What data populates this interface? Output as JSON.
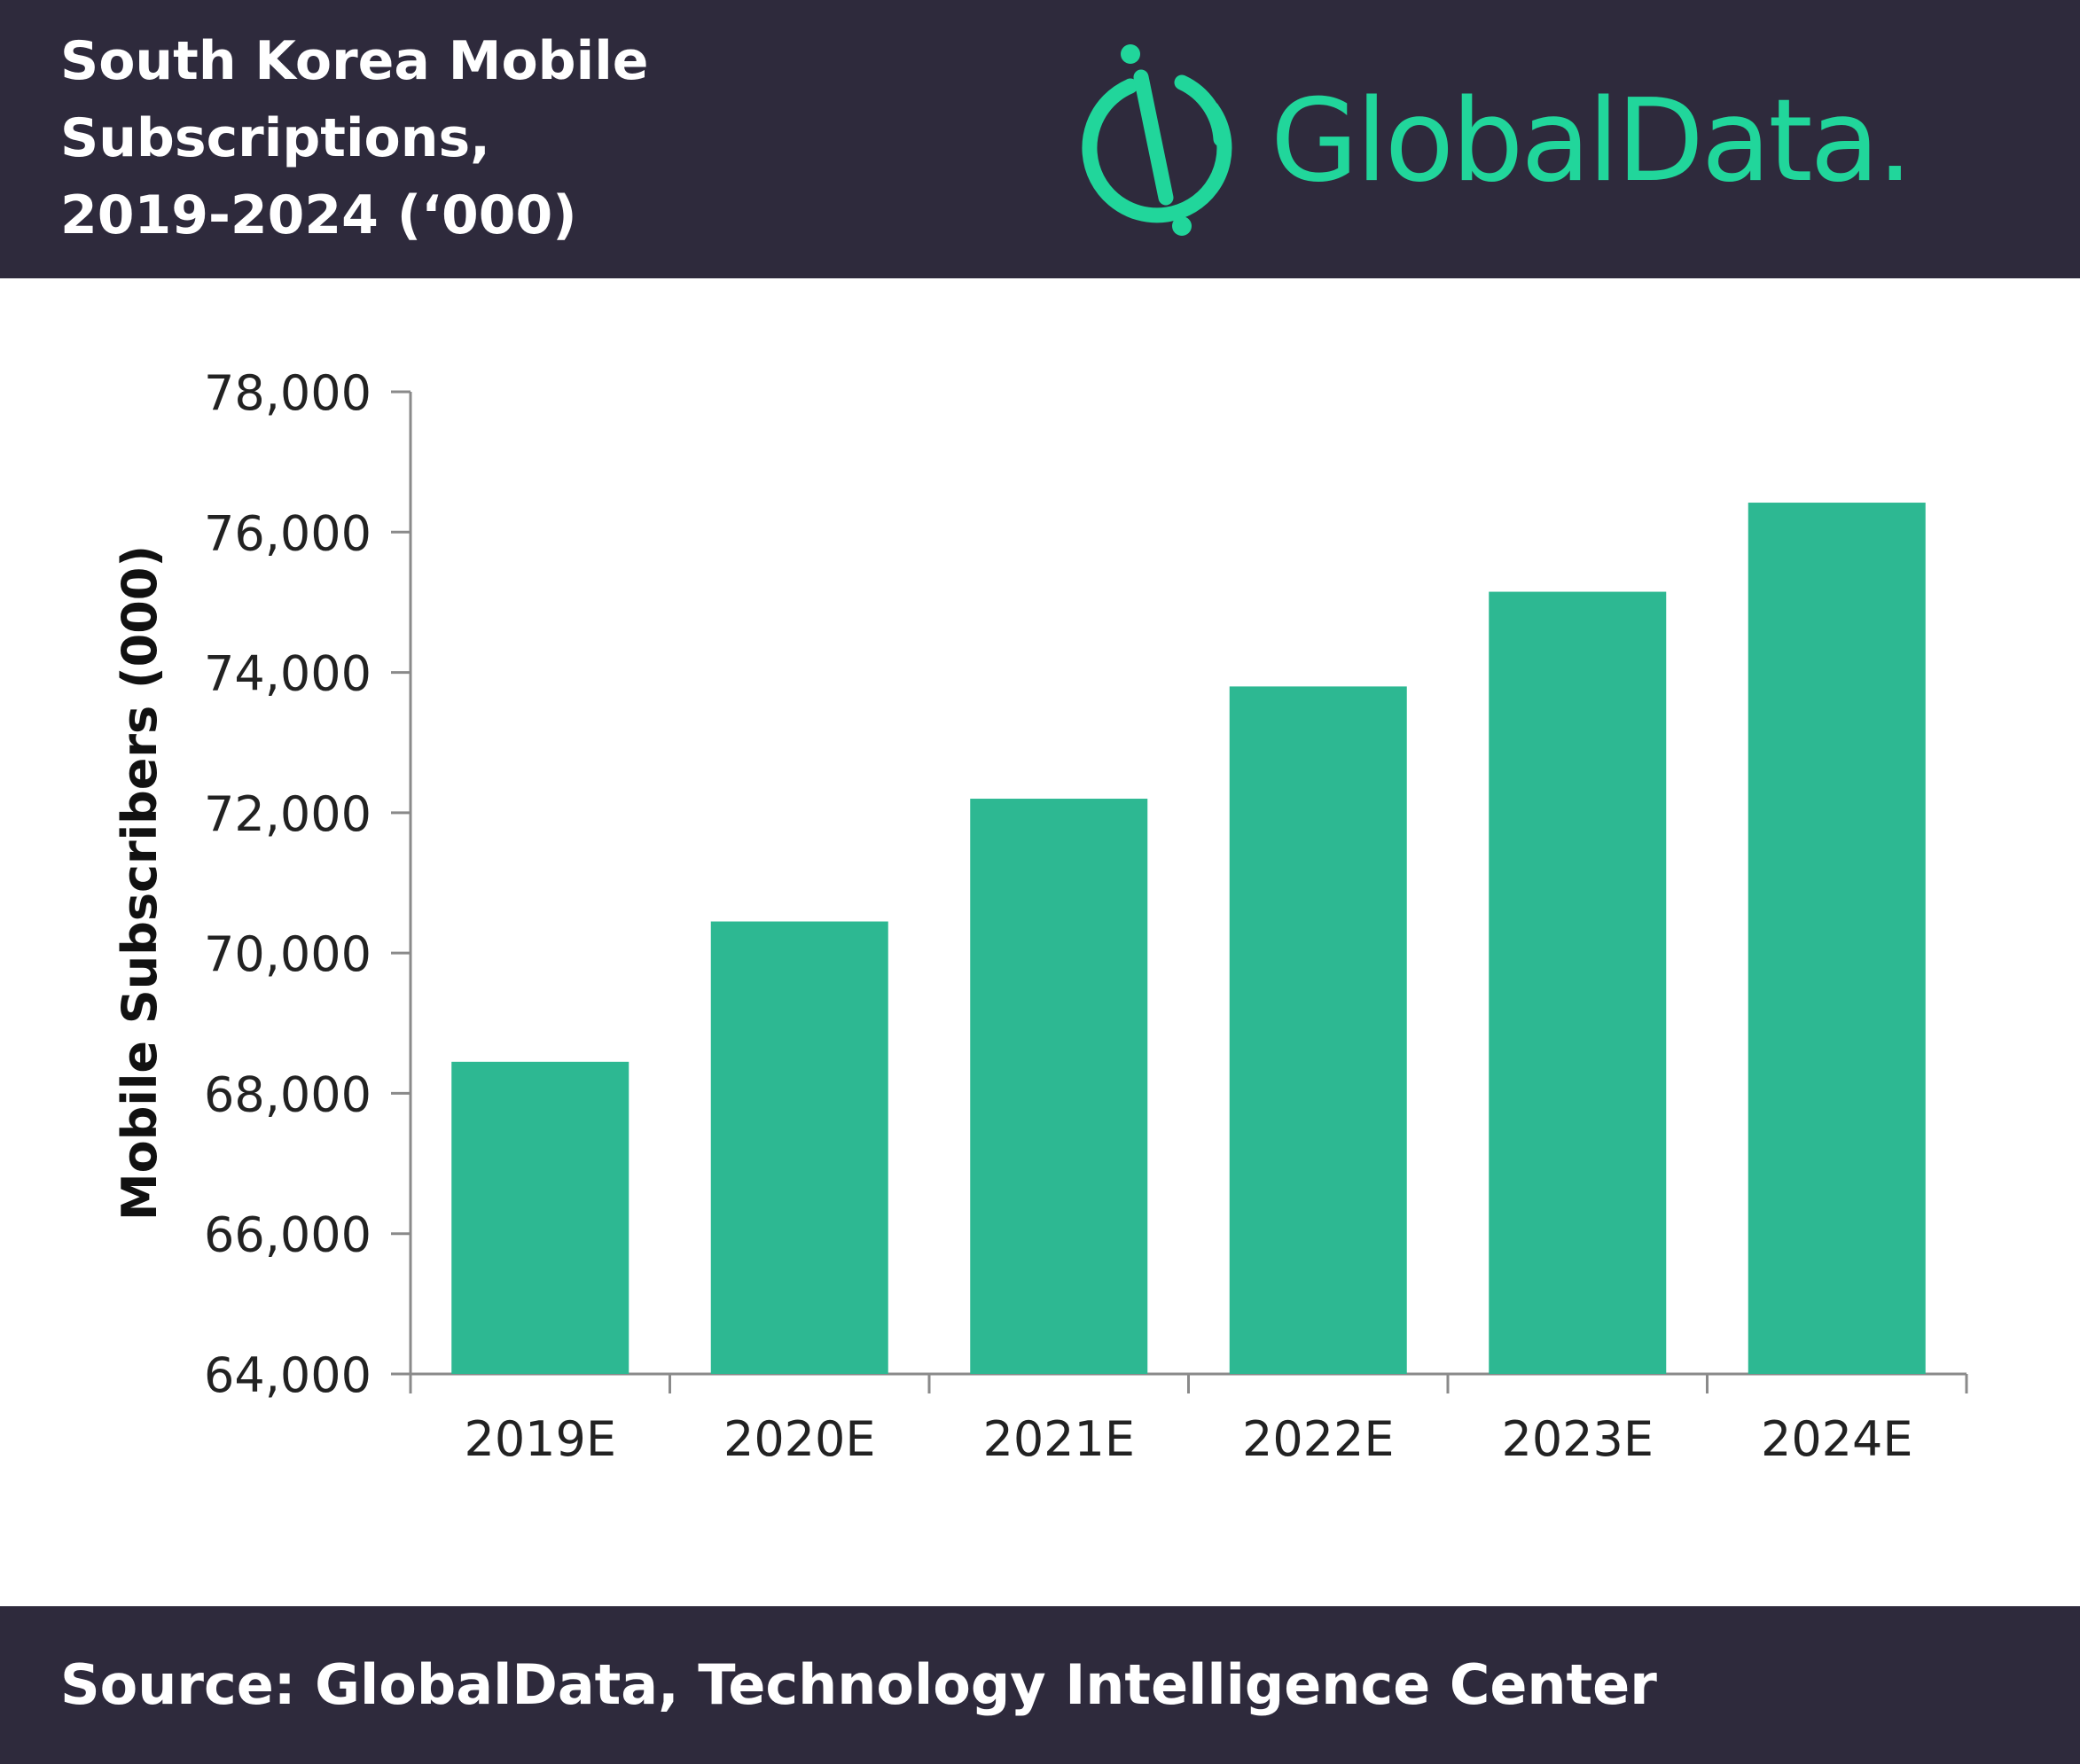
{
  "header": {
    "title": "South Korea Mobile\nSubscriptions,\n2019-2024 (‘000)",
    "logo_text": "GlobalData.",
    "logo_icon": "globaldata-logo-icon",
    "background_color": "#2e2a3c",
    "accent_color": "#21d69b"
  },
  "chart_data": {
    "type": "bar",
    "categories": [
      "2019E",
      "2020E",
      "2021E",
      "2022E",
      "2023E",
      "2024E"
    ],
    "values": [
      68450,
      70450,
      72200,
      73800,
      75150,
      76420
    ],
    "title": "South Korea Mobile Subscriptions, 2019-2024 (‘000)",
    "xlabel": "",
    "ylabel": "Mobile Subscribers (000)",
    "ylim": [
      64000,
      78000
    ],
    "yticks": [
      64000,
      66000,
      68000,
      70000,
      72000,
      74000,
      76000,
      78000
    ],
    "ytick_labels": [
      "64,000",
      "66,000",
      "68,000",
      "70,000",
      "72,000",
      "74,000",
      "76,000",
      "78,000"
    ],
    "grid": false,
    "legend": "none",
    "bar_color": "#2db892"
  },
  "footer": {
    "source": "Source: GlobalData, Technology Intelligence Center"
  }
}
